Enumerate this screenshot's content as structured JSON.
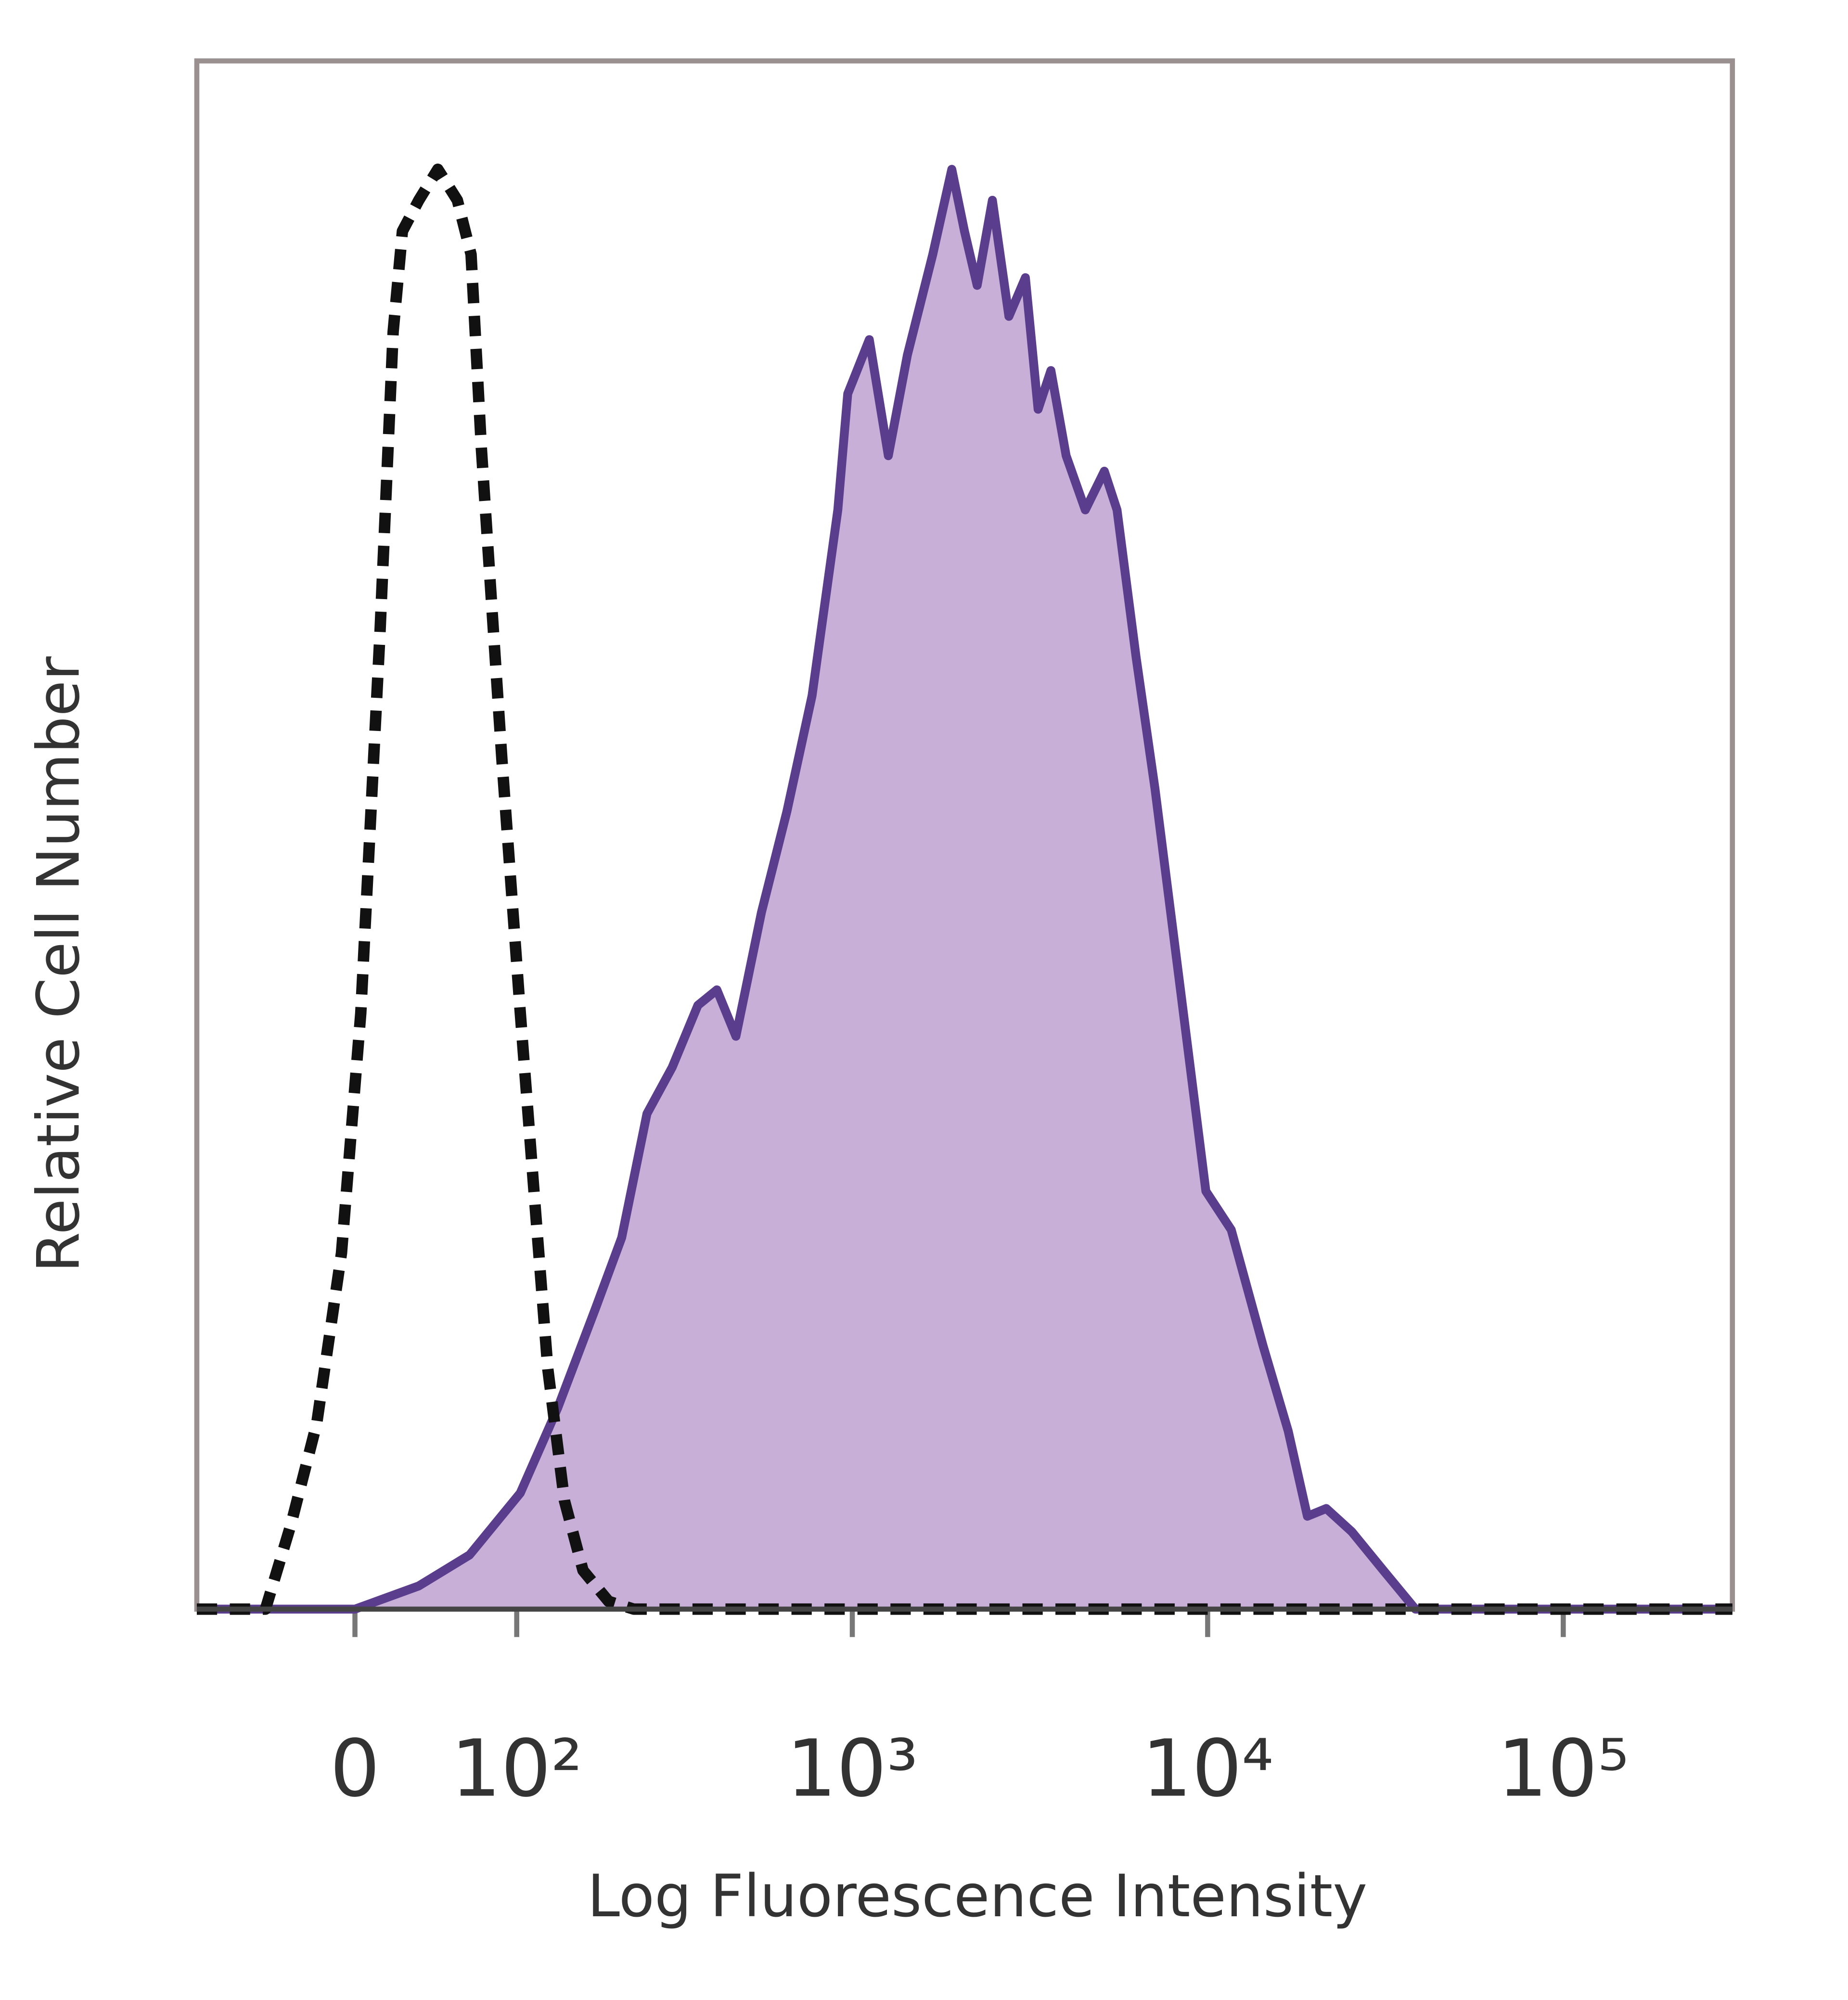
{
  "chart_data": {
    "type": "histogram-overlay",
    "xlabel": "Log Fluorescence Intensity",
    "ylabel": "Relative Cell Number",
    "xscale": "asinh",
    "xlim": [
      -97,
      299000
    ],
    "ylim": [
      0,
      100
    ],
    "xticks": [
      0,
      {
        "value": 100,
        "label": "10²"
      },
      {
        "value": 1000,
        "label": "10³"
      },
      {
        "value": 10000,
        "label": "10⁴"
      },
      {
        "value": 100000,
        "label": "10⁵"
      }
    ],
    "series": [
      {
        "color": "#5a3d8c",
        "fill": "#c7afd8",
        "dashed": false,
        "x": [
          -97,
          0,
          34,
          65,
          103,
          138,
          182,
          218,
          259,
          307,
          364,
          413,
          468,
          553,
          653,
          770,
          910,
          971,
          1117,
          1264,
          1430,
          1686,
          1906,
          2070,
          2248,
          2480,
          2760,
          3072,
          3336,
          3624,
          4000,
          4528,
          5120,
          5560,
          6288,
          7112,
          8384,
          9888,
          11648,
          14320,
          16848,
          19072,
          21568,
          25424,
          31200,
          38400,
          299000
        ],
        "values": [
          0,
          0,
          1.5,
          3.5,
          7.5,
          13,
          19.5,
          24,
          32,
          35,
          39,
          40,
          37,
          45,
          51.5,
          59,
          71,
          78.5,
          82,
          74.5,
          81,
          87.5,
          93,
          89,
          85.5,
          91,
          83.5,
          86,
          77.5,
          80,
          74.5,
          71,
          73.5,
          71,
          61.5,
          53,
          40,
          27,
          24.5,
          17,
          11.5,
          6,
          6.5,
          5,
          2.5,
          0,
          0
        ]
      },
      {
        "color": "#111111",
        "fill": "none",
        "dashed": true,
        "x": [
          -97,
          -49,
          -34,
          -20,
          -7,
          3,
          13,
          20,
          25,
          34,
          45,
          57,
          66,
          73,
          88,
          103,
          116,
          128,
          145,
          166,
          199,
          237,
          299000
        ],
        "values": [
          0,
          0,
          5.5,
          12,
          23,
          38.5,
          63,
          82.5,
          89,
          91,
          93,
          91,
          87.5,
          75,
          55,
          38.5,
          26,
          15.5,
          7,
          2.5,
          0.5,
          0,
          0
        ]
      }
    ]
  }
}
